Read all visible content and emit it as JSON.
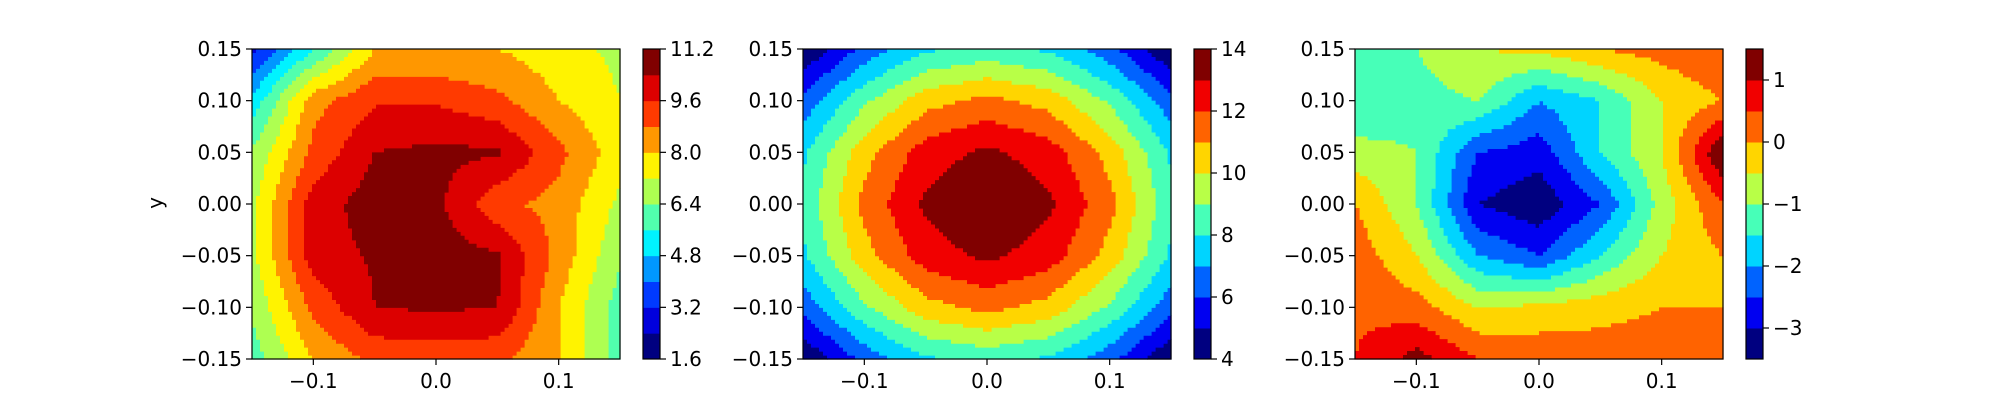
{
  "chart_data": [
    {
      "type": "heatmap",
      "title": "",
      "xlabel": "x",
      "ylabel": "y",
      "xlim": [
        -0.15,
        0.15
      ],
      "ylim": [
        -0.15,
        0.15
      ],
      "x_ticks": [
        "−0.1",
        "0.0",
        "0.1"
      ],
      "x_tick_values": [
        -0.1,
        0.0,
        0.1
      ],
      "y_ticks": [
        "−0.15",
        "−0.10",
        "−0.05",
        "0.00",
        "0.05",
        "0.10",
        "0.15"
      ],
      "y_tick_values": [
        -0.15,
        -0.1,
        -0.05,
        0.0,
        0.05,
        0.1,
        0.15
      ],
      "x": [
        -0.15,
        -0.1,
        -0.05,
        0.0,
        0.05,
        0.1,
        0.15
      ],
      "y": [
        -0.15,
        -0.1,
        -0.05,
        0.0,
        0.05,
        0.1,
        0.15
      ],
      "z": [
        [
          6.0,
          8.0,
          9.0,
          9.0,
          9.0,
          8.0,
          6.0
        ],
        [
          6.5,
          9.0,
          10.4,
          10.5,
          10.4,
          8.0,
          6.0
        ],
        [
          7.0,
          10.0,
          10.5,
          10.8,
          10.5,
          8.5,
          6.5
        ],
        [
          7.0,
          10.0,
          10.8,
          10.6,
          9.0,
          8.5,
          7.0
        ],
        [
          6.5,
          9.0,
          10.4,
          10.6,
          10.5,
          9.0,
          7.5
        ],
        [
          5.0,
          8.5,
          9.5,
          9.5,
          9.0,
          8.0,
          7.2
        ],
        [
          3.0,
          5.5,
          8.0,
          8.0,
          8.0,
          7.5,
          7.0
        ]
      ],
      "levels": [
        1.6,
        2.4,
        3.2,
        4.0,
        4.8,
        5.6,
        6.4,
        7.2,
        8.0,
        8.8,
        9.6,
        10.4,
        11.2
      ],
      "colorbar_ticks": [
        "1.6",
        "3.2",
        "4.8",
        "6.4",
        "8.0",
        "9.6",
        "11.2"
      ],
      "colorbar_tick_values": [
        1.6,
        3.2,
        4.8,
        6.4,
        8.0,
        9.6,
        11.2
      ],
      "colormap": "jet"
    },
    {
      "type": "heatmap",
      "title": "",
      "xlabel": "x",
      "ylabel": "",
      "xlim": [
        -0.15,
        0.15
      ],
      "ylim": [
        -0.15,
        0.15
      ],
      "x_ticks": [
        "−0.1",
        "0.0",
        "0.1"
      ],
      "x_tick_values": [
        -0.1,
        0.0,
        0.1
      ],
      "y_ticks": [
        "−0.15",
        "−0.10",
        "−0.05",
        "0.00",
        "0.05",
        "0.10",
        "0.15"
      ],
      "y_tick_values": [
        -0.15,
        -0.1,
        -0.05,
        0.0,
        0.05,
        0.1,
        0.15
      ],
      "x": [
        -0.15,
        -0.1,
        -0.05,
        0.0,
        0.05,
        0.1,
        0.15
      ],
      "y": [
        -0.15,
        -0.1,
        -0.05,
        0.0,
        0.05,
        0.1,
        0.15
      ],
      "z": [
        [
          4.0,
          6.3,
          7.8,
          8.3,
          7.8,
          6.3,
          4.0
        ],
        [
          6.3,
          8.8,
          10.6,
          11.3,
          10.6,
          8.8,
          6.3
        ],
        [
          7.8,
          10.6,
          12.5,
          13.2,
          12.5,
          10.6,
          7.8
        ],
        [
          8.3,
          11.3,
          13.2,
          14.0,
          13.2,
          11.3,
          8.3
        ],
        [
          7.8,
          10.6,
          12.5,
          13.2,
          12.5,
          10.6,
          7.8
        ],
        [
          6.3,
          8.8,
          10.6,
          11.3,
          10.6,
          8.8,
          6.3
        ],
        [
          4.0,
          6.3,
          7.8,
          8.3,
          7.8,
          6.3,
          4.0
        ]
      ],
      "levels": [
        4,
        5,
        6,
        7,
        8,
        9,
        10,
        11,
        12,
        13,
        14
      ],
      "colorbar_ticks": [
        "4",
        "6",
        "8",
        "10",
        "12",
        "14"
      ],
      "colorbar_tick_values": [
        4,
        6,
        8,
        10,
        12,
        14
      ],
      "colormap": "jet"
    },
    {
      "type": "heatmap",
      "title": "",
      "xlabel": "x",
      "ylabel": "",
      "xlim": [
        -0.15,
        0.15
      ],
      "ylim": [
        -0.15,
        0.15
      ],
      "x_ticks": [
        "−0.1",
        "0.0",
        "0.1"
      ],
      "x_tick_values": [
        -0.1,
        0.0,
        0.1
      ],
      "y_ticks": [
        "−0.15",
        "−0.10",
        "−0.05",
        "0.00",
        "0.05",
        "0.10",
        "0.15"
      ],
      "y_tick_values": [
        -0.15,
        -0.1,
        -0.05,
        0.0,
        0.05,
        0.1,
        0.15
      ],
      "x": [
        -0.15,
        -0.1,
        -0.05,
        0.0,
        0.05,
        0.1,
        0.15
      ],
      "y": [
        -0.15,
        -0.1,
        -0.05,
        0.0,
        0.05,
        0.1,
        0.15
      ],
      "z": [
        [
          0.5,
          1.2,
          0.5,
          0.4,
          0.3,
          0.3,
          0.2
        ],
        [
          0.4,
          0.2,
          -0.5,
          -0.4,
          -0.2,
          0.0,
          0.0
        ],
        [
          0.3,
          -0.5,
          -2.0,
          -2.5,
          -1.5,
          -0.5,
          0.0
        ],
        [
          0.0,
          -1.0,
          -3.0,
          -3.4,
          -2.5,
          -0.8,
          0.5
        ],
        [
          -0.8,
          -1.0,
          -2.5,
          -2.8,
          -1.5,
          -0.5,
          1.5
        ],
        [
          -1.5,
          -1.2,
          -1.0,
          -2.0,
          -1.5,
          -0.5,
          0.0
        ],
        [
          -1.5,
          -1.0,
          -0.5,
          -0.4,
          0.0,
          0.2,
          0.5
        ]
      ],
      "levels": [
        -3.5,
        -3.0,
        -2.5,
        -2.0,
        -1.5,
        -1.0,
        -0.5,
        0.0,
        0.5,
        1.0,
        1.5
      ],
      "colorbar_ticks": [
        "−3",
        "−2",
        "−1",
        "0",
        "1"
      ],
      "colorbar_tick_values": [
        -3,
        -2,
        -1,
        0,
        1
      ],
      "colormap": "jet"
    }
  ]
}
